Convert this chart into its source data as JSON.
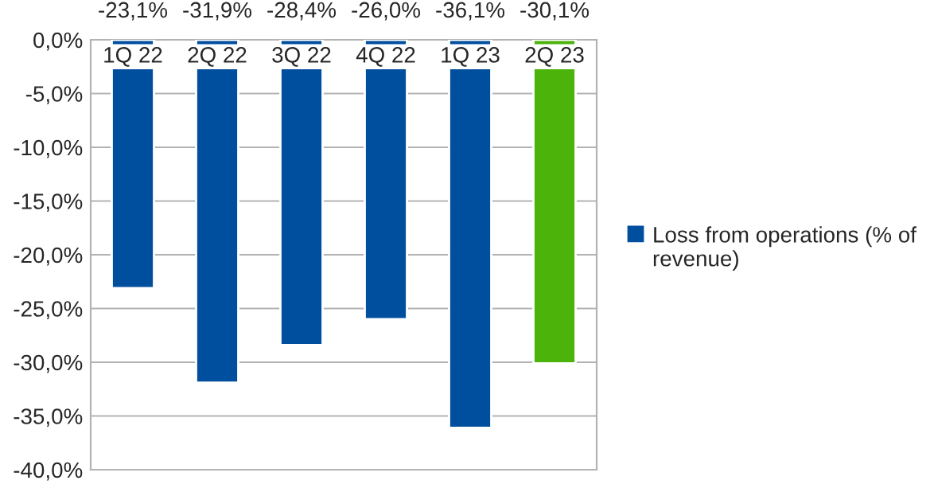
{
  "chart_data": {
    "type": "bar",
    "categories": [
      "1Q 22",
      "2Q 22",
      "3Q 22",
      "4Q 22",
      "1Q 23",
      "2Q 23"
    ],
    "series": [
      {
        "name": "Loss from operations (% of revenue)",
        "color": "#004f9f",
        "values": [
          -23.1,
          -31.9,
          -28.4,
          -26.0,
          -36.1,
          -30.1
        ],
        "colors": [
          "#004f9f",
          "#004f9f",
          "#004f9f",
          "#004f9f",
          "#004f9f",
          "#4cb30a"
        ],
        "value_labels": [
          "-23,1%",
          "-31,9%",
          "-28,4%",
          "-26,0%",
          "-36,1%",
          "-30,1%"
        ]
      }
    ],
    "ylim": [
      -40,
      0
    ],
    "yticks": [
      {
        "value": 0,
        "label": "0,0%"
      },
      {
        "value": -5,
        "label": "-5,0%"
      },
      {
        "value": -10,
        "label": "-10,0%"
      },
      {
        "value": -15,
        "label": "-15,0%"
      },
      {
        "value": -20,
        "label": "-20,0%"
      },
      {
        "value": -25,
        "label": "-25,0%"
      },
      {
        "value": -30,
        "label": "-30,0%"
      },
      {
        "value": -35,
        "label": "-35,0%"
      },
      {
        "value": -40,
        "label": "-40,0%"
      }
    ],
    "grid": "y",
    "legend": "right"
  }
}
